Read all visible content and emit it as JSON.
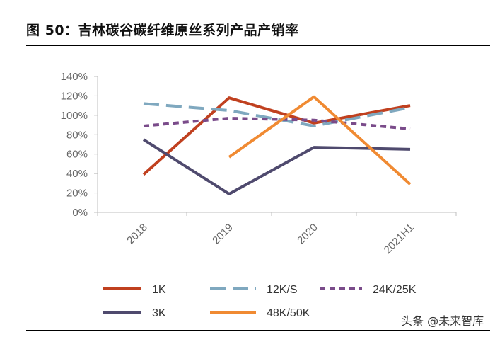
{
  "title": "图 50：吉林碳谷碳纤维原丝系列产品产销率",
  "watermark": "头条 @未来智库",
  "chart_data": {
    "type": "line",
    "categories": [
      "2018",
      "2019",
      "2020",
      "2021H1"
    ],
    "y_ticks": [
      "0%",
      "20%",
      "40%",
      "60%",
      "80%",
      "100%",
      "120%",
      "140%"
    ],
    "ylim": [
      0,
      140
    ],
    "grid": false,
    "legend_position": "bottom",
    "series": [
      {
        "name": "1K",
        "values": [
          39,
          118,
          92,
          110
        ],
        "color": "#c0401f",
        "dash": "solid"
      },
      {
        "name": "12K/S",
        "values": [
          112,
          105,
          89,
          108
        ],
        "color": "#7fa8bf",
        "dash": "long-dash"
      },
      {
        "name": "24K/25K",
        "values": [
          89,
          97,
          95,
          86
        ],
        "color": "#7a4b8a",
        "dash": "dash"
      },
      {
        "name": "3K",
        "values": [
          75,
          19,
          67,
          65
        ],
        "color": "#4f4a6e",
        "dash": "solid"
      },
      {
        "name": "48K/50K",
        "values": [
          null,
          57,
          119,
          29
        ],
        "color": "#f08a32",
        "dash": "solid"
      }
    ]
  }
}
